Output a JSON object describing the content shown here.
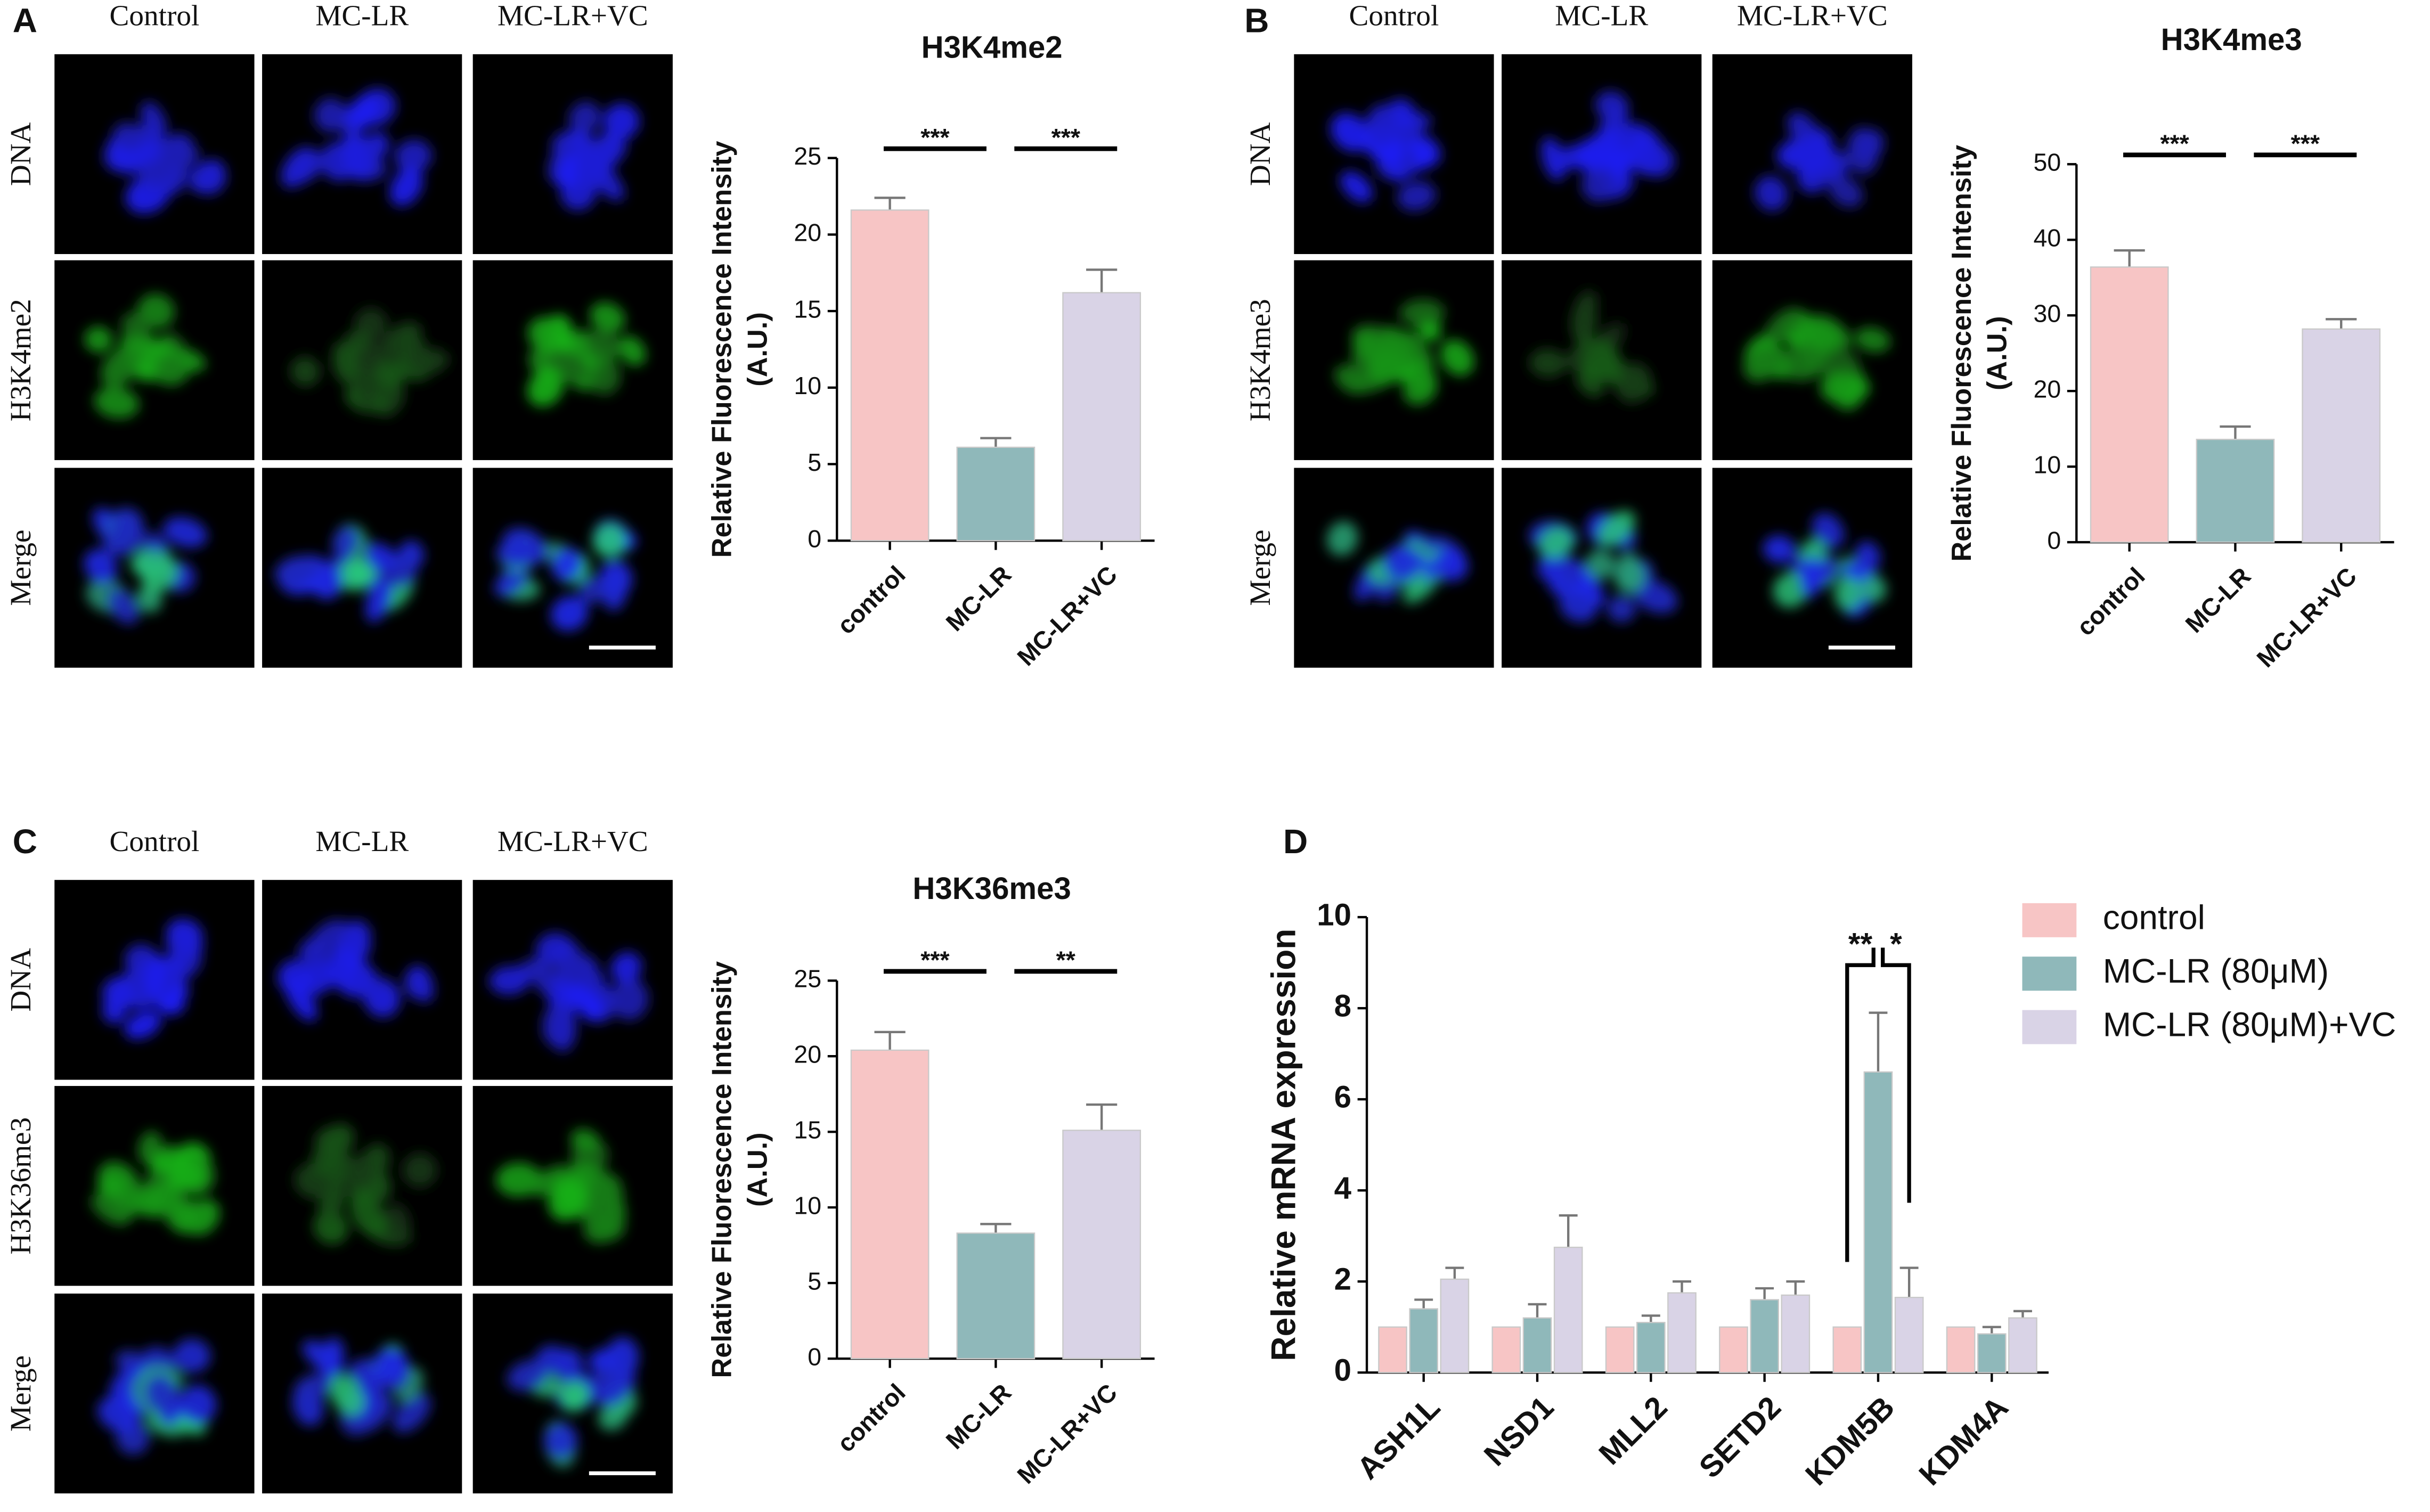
{
  "panel_letters": [
    "A",
    "B",
    "C",
    "D"
  ],
  "image_panels": [
    {
      "columns": [
        "Control",
        "MC-LR",
        "MC-LR+VC"
      ],
      "rows": [
        "DNA",
        "H3K4me2",
        "Merge"
      ]
    },
    {
      "columns": [
        "Control",
        "MC-LR",
        "MC-LR+VC"
      ],
      "rows": [
        "DNA",
        "H3K4me3",
        "Merge"
      ]
    },
    {
      "columns": [
        "Control",
        "MC-LR",
        "MC-LR+VC"
      ],
      "rows": [
        "DNA",
        "H3K36me3",
        "Merge"
      ]
    }
  ],
  "chart_data": [
    {
      "type": "bar",
      "title": "H3K4me2",
      "ylabel": [
        "Relative Fluorescence Intensity",
        "(A.U.)"
      ],
      "categories": [
        "control",
        "MC-LR",
        "MC-LR+VC"
      ],
      "values": [
        21.6,
        6.1,
        16.2
      ],
      "errors": [
        0.8,
        0.6,
        1.5
      ],
      "colors": [
        "#f7c5c5",
        "#8fb8ba",
        "#d9d3e6"
      ],
      "significance": [
        "***",
        "***"
      ],
      "ylim": [
        0,
        25
      ],
      "yticks": [
        0,
        5,
        10,
        15,
        20,
        25
      ]
    },
    {
      "type": "bar",
      "title": "H3K4me3",
      "ylabel": [
        "Relative Fluorescence Intensity",
        "(A.U.)"
      ],
      "categories": [
        "control",
        "MC-LR",
        "MC-LR+VC"
      ],
      "values": [
        36.4,
        13.6,
        28.2
      ],
      "errors": [
        2.2,
        1.7,
        1.3
      ],
      "colors": [
        "#f7c5c5",
        "#8fb8ba",
        "#d9d3e6"
      ],
      "significance": [
        "***",
        "***"
      ],
      "ylim": [
        0,
        50
      ],
      "yticks": [
        0,
        10,
        20,
        30,
        40,
        50
      ]
    },
    {
      "type": "bar",
      "title": "H3K36me3",
      "ylabel": [
        "Relative Fluorescence Intensity",
        "(A.U.)"
      ],
      "categories": [
        "control",
        "MC-LR",
        "MC-LR+VC"
      ],
      "values": [
        20.4,
        8.3,
        15.1
      ],
      "errors": [
        1.2,
        0.6,
        1.7
      ],
      "colors": [
        "#f7c5c5",
        "#8fb8ba",
        "#d9d3e6"
      ],
      "significance": [
        "***",
        "**"
      ],
      "ylim": [
        0,
        25
      ],
      "yticks": [
        0,
        5,
        10,
        15,
        20,
        25
      ]
    },
    {
      "type": "grouped_bar",
      "ylabel": [
        "Relative mRNA expression"
      ],
      "categories": [
        "ASH1L",
        "NSD1",
        "MLL2",
        "SETD2",
        "KDM5B",
        "KDM4A"
      ],
      "series": [
        {
          "name": "control",
          "color": "#f7c5c5",
          "values": [
            1,
            1,
            1,
            1,
            1,
            1
          ]
        },
        {
          "name": "MC-LR (80μM)",
          "color": "#8fb8ba",
          "values": [
            1.4,
            1.2,
            1.1,
            1.6,
            6.6,
            0.85
          ],
          "errors": [
            0.2,
            0.3,
            0.15,
            0.25,
            1.3,
            0.15
          ]
        },
        {
          "name": "MC-LR (80μM)+VC",
          "color": "#d9d3e6",
          "values": [
            2.05,
            2.75,
            1.75,
            1.7,
            1.65,
            1.2
          ],
          "errors": [
            0.25,
            0.7,
            0.25,
            0.3,
            0.65,
            0.15
          ]
        }
      ],
      "significance": [
        null,
        null,
        null,
        null,
        [
          "**",
          "*"
        ],
        null
      ],
      "ylim": [
        0,
        10
      ],
      "yticks": [
        0,
        2,
        4,
        6,
        8,
        10
      ]
    }
  ]
}
